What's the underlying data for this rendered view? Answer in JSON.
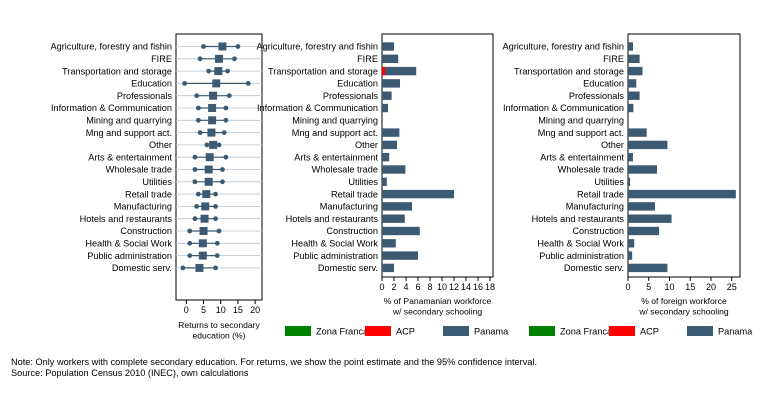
{
  "colors": {
    "panama": "#3d5a73",
    "acp": "#ff0000",
    "zona_franca": "#008000"
  },
  "categories": [
    "Agriculture, forestry and fishin",
    "FIRE",
    "Transportation and storage",
    "Education",
    "Professionals",
    "Information & Communication",
    "Mining and quarrying",
    "Mng and support act.",
    "Other",
    "Arts & entertainment",
    "Wholesale trade",
    "Utilities",
    "Retail trade",
    "Manufacturing",
    "Hotels and restaurants",
    "Construction",
    "Health & Social Work",
    "Public administration",
    "Domestic serv."
  ],
  "chart_data": [
    {
      "type": "scatter",
      "xlabel": "Returns to secondary education (%)",
      "xlabel_lines": [
        "Returns to secondary",
        "education (%)"
      ],
      "xticks": [
        0,
        5,
        10,
        15,
        20
      ],
      "xlim": [
        -3,
        22
      ],
      "estimates": [
        10.5,
        9.5,
        9.3,
        8.7,
        7.8,
        7.5,
        7.5,
        7.3,
        7.8,
        6.8,
        6.5,
        6.5,
        5.8,
        5.5,
        5.3,
        5.0,
        4.8,
        4.8,
        3.8
      ],
      "ci_low": [
        5.0,
        4.0,
        6.5,
        -0.5,
        3.0,
        3.5,
        3.5,
        4.0,
        6.0,
        2.5,
        2.5,
        2.5,
        3.5,
        3.0,
        2.5,
        1.0,
        1.0,
        1.0,
        -1.0
      ],
      "ci_high": [
        15.0,
        14.0,
        12.0,
        18.0,
        12.5,
        11.5,
        11.5,
        11.0,
        9.5,
        11.5,
        10.5,
        10.5,
        8.5,
        8.5,
        8.5,
        9.5,
        9.0,
        9.0,
        8.5
      ]
    },
    {
      "type": "bar",
      "orientation": "horizontal",
      "xlabel": "% of Panamanian workforce w/ secondary schooling",
      "xlabel_lines": [
        "% of Panamanian workforce",
        "w/ secondary schooling"
      ],
      "xticks": [
        0,
        2,
        4,
        6,
        8,
        10,
        12,
        14,
        16,
        18
      ],
      "xlim": [
        0,
        18.5
      ],
      "series": [
        {
          "name": "Panama",
          "values": [
            2.0,
            2.7,
            5.7,
            3.0,
            1.6,
            1.0,
            0.0,
            2.9,
            2.5,
            1.2,
            3.9,
            0.8,
            12.0,
            5.0,
            3.8,
            6.3,
            2.3,
            6.0,
            2.0
          ]
        },
        {
          "name": "ACP",
          "values": [
            0,
            0,
            0.5,
            0,
            0,
            0,
            0,
            0,
            0,
            0,
            0,
            0,
            0,
            0,
            0,
            0,
            0,
            0,
            0
          ]
        },
        {
          "name": "Zona Franca",
          "values": [
            0,
            0,
            0,
            0,
            0,
            0,
            0,
            0,
            0,
            0,
            0,
            0,
            0,
            0,
            0,
            0,
            0,
            0,
            0
          ]
        }
      ]
    },
    {
      "type": "bar",
      "orientation": "horizontal",
      "xlabel": "% of foreign workforce w/ secondary schooling",
      "xlabel_lines": [
        "% of foreign workforce",
        "w/ secondary schooling"
      ],
      "xticks": [
        0,
        5,
        10,
        15,
        20,
        25
      ],
      "xlim": [
        0,
        27
      ],
      "series": [
        {
          "name": "Panama",
          "values": [
            1.2,
            2.8,
            3.5,
            2.0,
            2.8,
            1.3,
            0.0,
            4.5,
            9.5,
            1.2,
            7.0,
            0.5,
            26.0,
            6.5,
            10.5,
            7.5,
            1.5,
            1.0,
            9.5
          ]
        },
        {
          "name": "ACP",
          "values": [
            0,
            0,
            0,
            0,
            0,
            0,
            0,
            0,
            0,
            0,
            0,
            0,
            0,
            0,
            0,
            0,
            0,
            0,
            0
          ]
        },
        {
          "name": "Zona Franca",
          "values": [
            0,
            0,
            0,
            0,
            0,
            0,
            0,
            0,
            0,
            0,
            0,
            0,
            0,
            0,
            0,
            0,
            0,
            0,
            0
          ]
        }
      ]
    }
  ],
  "legend": [
    "Zona Franca",
    "ACP",
    "Panama"
  ],
  "notes": [
    "Note: Only workers with complete secondary education. For returns, we show the point estimate and the 95% confidence interval.",
    "Source: Population Census 2010 (INEC), own calculations"
  ]
}
